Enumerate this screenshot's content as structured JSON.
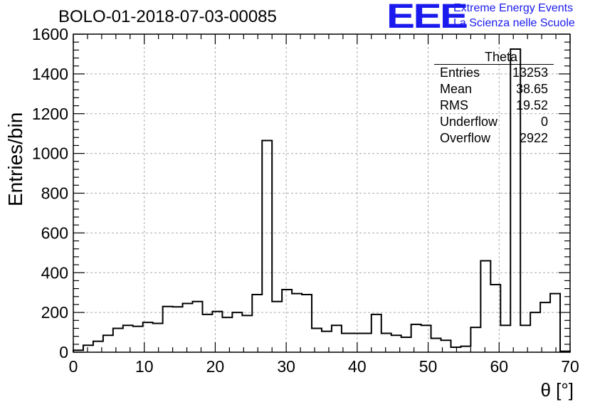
{
  "header": {
    "title": "BOLO-01-2018-07-03-00085",
    "logo_text": "EEE",
    "logo_line1": "Extreme Energy Events",
    "logo_line2": "La Scienza nelle Scuole"
  },
  "stats_box": {
    "title": "Theta",
    "rows": [
      {
        "label": "Entries",
        "value": "13253"
      },
      {
        "label": "Mean",
        "value": "38.65"
      },
      {
        "label": "RMS",
        "value": "19.52"
      },
      {
        "label": "Underflow",
        "value": "0"
      },
      {
        "label": "Overflow",
        "value": "2922"
      }
    ]
  },
  "colors": {
    "line": "#000000",
    "grid": "#aaaaaa",
    "logo": "#1a1aee"
  },
  "chart_data": {
    "type": "histogram",
    "title": "BOLO-01-2018-07-03-00085",
    "xlabel": "θ [°]",
    "ylabel": "Entries/bin",
    "xlim": [
      0,
      70
    ],
    "ylim": [
      0,
      1600
    ],
    "x_ticks": [
      0,
      10,
      20,
      30,
      40,
      50,
      60,
      70
    ],
    "y_ticks": [
      0,
      200,
      400,
      600,
      800,
      1000,
      1200,
      1400,
      1600
    ],
    "grid": true,
    "bin_width": 1.4,
    "bin_edges_start": 0,
    "values": [
      10,
      35,
      55,
      85,
      120,
      135,
      130,
      150,
      145,
      230,
      228,
      245,
      255,
      190,
      205,
      175,
      200,
      185,
      290,
      1065,
      255,
      315,
      295,
      290,
      120,
      105,
      135,
      95,
      95,
      95,
      190,
      95,
      85,
      75,
      140,
      135,
      70,
      60,
      25,
      30,
      125,
      460,
      340,
      135,
      1525,
      135,
      200,
      250,
      295,
      5
    ]
  }
}
